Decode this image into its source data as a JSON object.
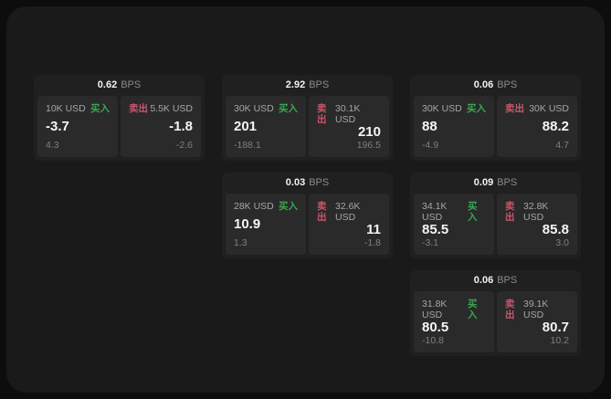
{
  "page": {
    "background": "#0d0d0d",
    "panel_background": "#1a1a1a"
  },
  "labels": {
    "bps_unit": "BPS",
    "buy": "买入",
    "sell": "卖出"
  },
  "colors": {
    "buy_label": "#3aa64f",
    "sell_label": "#c9566b",
    "value_text": "#f5f5f5",
    "muted_text": "#8b8b8b"
  },
  "cards": [
    {
      "row": 1,
      "col": 1,
      "bps": "0.62",
      "buy": {
        "amount": "10K USD",
        "value": "-3.7",
        "delta": "4.3"
      },
      "sell": {
        "amount": "5.5K USD",
        "value": "-1.8",
        "delta": "-2.6"
      }
    },
    {
      "row": 1,
      "col": 2,
      "bps": "2.92",
      "buy": {
        "amount": "30K USD",
        "value": "201",
        "delta": "-188.1"
      },
      "sell": {
        "amount": "30.1K USD",
        "value": "210",
        "delta": "196.5"
      }
    },
    {
      "row": 1,
      "col": 3,
      "bps": "0.06",
      "buy": {
        "amount": "30K USD",
        "value": "88",
        "delta": "-4.9"
      },
      "sell": {
        "amount": "30K USD",
        "value": "88.2",
        "delta": "4.7"
      }
    },
    {
      "row": 2,
      "col": 2,
      "bps": "0.03",
      "buy": {
        "amount": "28K USD",
        "value": "10.9",
        "delta": "1.3"
      },
      "sell": {
        "amount": "32.6K USD",
        "value": "11",
        "delta": "-1.8"
      }
    },
    {
      "row": 2,
      "col": 3,
      "bps": "0.09",
      "buy": {
        "amount": "34.1K USD",
        "value": "85.5",
        "delta": "-3.1"
      },
      "sell": {
        "amount": "32.8K USD",
        "value": "85.8",
        "delta": "3.0"
      }
    },
    {
      "row": 3,
      "col": 3,
      "bps": "0.06",
      "buy": {
        "amount": "31.8K USD",
        "value": "80.5",
        "delta": "-10.8"
      },
      "sell": {
        "amount": "39.1K USD",
        "value": "80.7",
        "delta": "10.2"
      }
    }
  ]
}
